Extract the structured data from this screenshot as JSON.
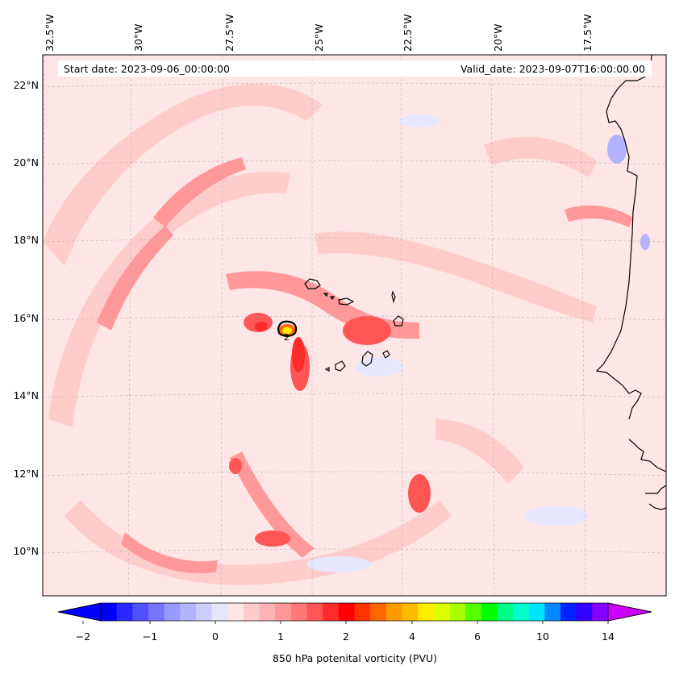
{
  "header": {
    "start_date": "Start date: 2023-09-06_00:00:00",
    "valid_date": "Valid_date: 2023-09-07T16:00:00.00"
  },
  "map": {
    "longitude_labels": [
      "32.5°W",
      "30°W",
      "27.5°W",
      "25°W",
      "22.5°W",
      "20°W",
      "17.5°W"
    ],
    "latitude_labels": [
      "22°N",
      "20°N",
      "18°N",
      "16°N",
      "14°N",
      "12°N",
      "10°N"
    ],
    "contour_label": "2",
    "colors": {
      "background": "#ffe6e6",
      "light_red": "#ffcccc",
      "medium_red": "#ff9999",
      "strong_red": "#ff5555",
      "vivid_red": "#ff2a2a",
      "light_blue": "#e6e6ff",
      "blue": "#b3b3ff",
      "coast": "#000000",
      "gridline": "#b0b0b0"
    }
  },
  "colorbar": {
    "label": "850 hPa potenital vorticity (PVU)",
    "tick_labels": [
      "−2",
      "−1",
      "0",
      "1",
      "2",
      "4",
      "6",
      "10",
      "14"
    ],
    "colors": [
      "#0000ff",
      "#2828ff",
      "#5050ff",
      "#7575ff",
      "#9999ff",
      "#b3b3ff",
      "#ccccff",
      "#e6e6ff",
      "#ffe6e6",
      "#ffcccc",
      "#ffb3b3",
      "#ff9999",
      "#ff7777",
      "#ff5555",
      "#ff2a2a",
      "#ff0000",
      "#ff3300",
      "#ff6600",
      "#ff9900",
      "#ffbb00",
      "#ffee00",
      "#ddff00",
      "#aaff00",
      "#55ff00",
      "#00ff00",
      "#00ff88",
      "#00ffcc",
      "#00e5ff",
      "#0088ff",
      "#0022ff",
      "#3300ff",
      "#8800ff"
    ],
    "min_extend_color": "#0000ff",
    "max_extend_color": "#cc00ff"
  }
}
